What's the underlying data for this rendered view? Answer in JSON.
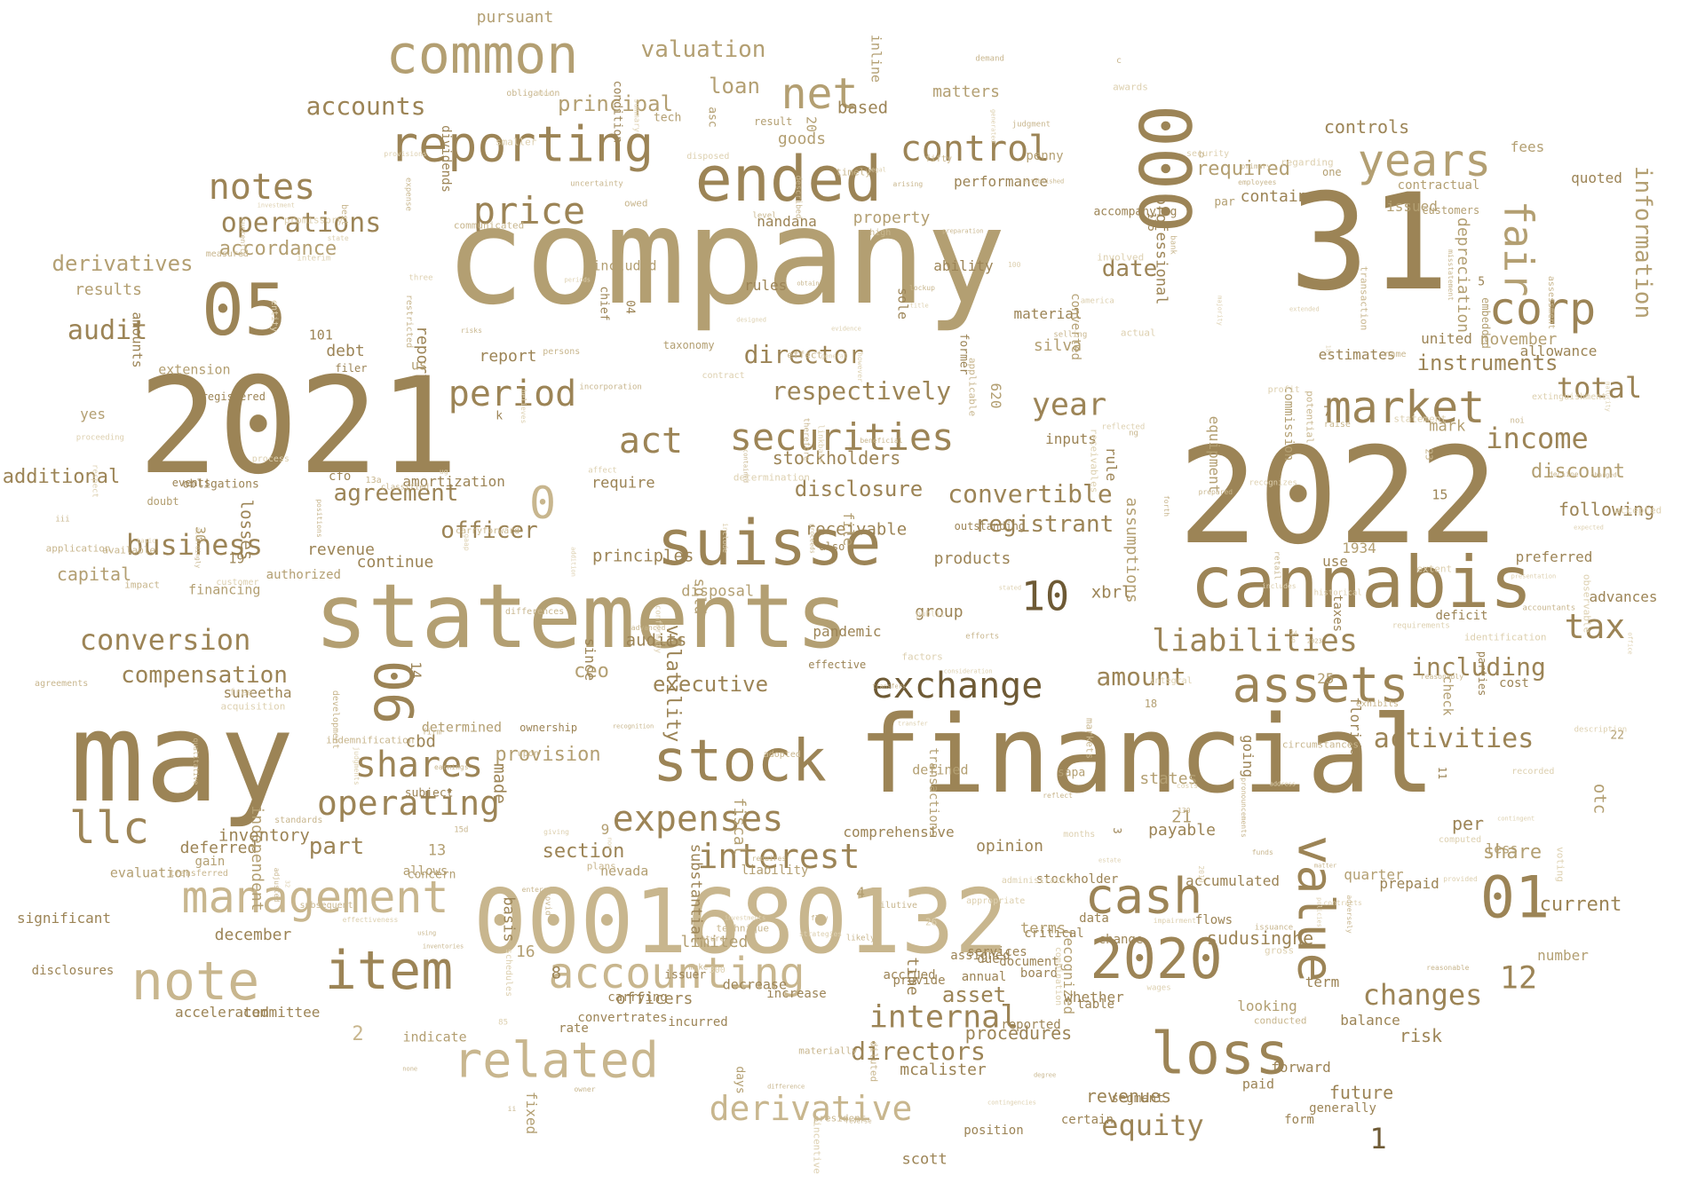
{
  "title": "",
  "palette": {
    "dark": "#6e5a35",
    "mid": "#9c8456",
    "base": "#b39f72",
    "light": "#c8b68e",
    "pale": "#ddd0b0"
  },
  "words": [
    {
      "text": "company"
    },
    {
      "text": "31"
    },
    {
      "text": "2021"
    },
    {
      "text": "2022"
    },
    {
      "text": "may"
    },
    {
      "text": "financial"
    },
    {
      "text": "statements"
    },
    {
      "text": "0001680132"
    },
    {
      "text": "suisse"
    },
    {
      "text": "cannabis"
    },
    {
      "text": "000"
    },
    {
      "text": "ended"
    },
    {
      "text": "common"
    },
    {
      "text": "05"
    },
    {
      "text": "stock"
    },
    {
      "text": "reporting"
    },
    {
      "text": "loss"
    },
    {
      "text": "cash"
    },
    {
      "text": "related"
    },
    {
      "text": "item"
    },
    {
      "text": "note"
    },
    {
      "text": "2020"
    },
    {
      "text": "assets"
    },
    {
      "text": "value"
    },
    {
      "text": "01"
    },
    {
      "text": "management"
    },
    {
      "text": "06"
    },
    {
      "text": "llc"
    },
    {
      "text": "accounting"
    },
    {
      "text": "market"
    },
    {
      "text": "corp"
    },
    {
      "text": "years"
    },
    {
      "text": "fair"
    },
    {
      "text": "net"
    },
    {
      "text": "control"
    },
    {
      "text": "price"
    },
    {
      "text": "notes"
    },
    {
      "text": "period"
    },
    {
      "text": "securities"
    },
    {
      "text": "act"
    },
    {
      "text": "exchange"
    },
    {
      "text": "expenses"
    },
    {
      "text": "interest"
    },
    {
      "text": "shares"
    },
    {
      "text": "operating"
    },
    {
      "text": "derivative"
    },
    {
      "text": "liabilities"
    },
    {
      "text": "tax"
    },
    {
      "text": "income"
    },
    {
      "text": "total"
    },
    {
      "text": "0"
    },
    {
      "text": "10"
    },
    {
      "text": "business"
    },
    {
      "text": "conversion"
    },
    {
      "text": "operations"
    },
    {
      "text": "accounts"
    },
    {
      "text": "audit"
    },
    {
      "text": "respectively"
    },
    {
      "text": "including"
    },
    {
      "text": "year"
    },
    {
      "text": "internal"
    },
    {
      "text": "changes"
    },
    {
      "text": "equity"
    },
    {
      "text": "directors"
    },
    {
      "text": "information"
    },
    {
      "text": "director"
    },
    {
      "text": "compensation"
    },
    {
      "text": "part"
    },
    {
      "text": "date"
    },
    {
      "text": "amount"
    },
    {
      "text": "convertible"
    },
    {
      "text": "registrant"
    },
    {
      "text": "valuation"
    },
    {
      "text": "principal"
    },
    {
      "text": "loan"
    },
    {
      "text": "officer"
    },
    {
      "text": "agreement"
    },
    {
      "text": "derivatives"
    },
    {
      "text": "accordance"
    },
    {
      "text": "executive"
    },
    {
      "text": "section"
    },
    {
      "text": "provision"
    },
    {
      "text": "share"
    },
    {
      "text": "disclosure"
    },
    {
      "text": "required"
    },
    {
      "text": "controls"
    },
    {
      "text": "instruments"
    },
    {
      "text": "activities"
    },
    {
      "text": "12"
    },
    {
      "text": "1"
    },
    {
      "text": "2"
    },
    {
      "text": "procedures"
    },
    {
      "text": "revenues"
    },
    {
      "text": "future"
    },
    {
      "text": "sudusinghe"
    },
    {
      "text": "discount"
    },
    {
      "text": "following"
    },
    {
      "text": "goods"
    },
    {
      "text": "stockholders"
    },
    {
      "text": "matters"
    },
    {
      "text": "pursuant"
    },
    {
      "text": "assumptions"
    },
    {
      "text": "volatility"
    },
    {
      "text": "ceo"
    },
    {
      "text": "asset"
    },
    {
      "text": "risk"
    },
    {
      "text": "current"
    },
    {
      "text": "per"
    },
    {
      "text": "opinion"
    },
    {
      "text": "products"
    },
    {
      "text": "november"
    },
    {
      "text": "depreciation"
    },
    {
      "text": "additional"
    },
    {
      "text": "capital"
    },
    {
      "text": "results"
    },
    {
      "text": "deferred"
    },
    {
      "text": "december"
    },
    {
      "text": "suneetha"
    },
    {
      "text": "significant"
    },
    {
      "text": "disclosures"
    },
    {
      "text": "committee"
    },
    {
      "text": "accelerated"
    },
    {
      "text": "property"
    },
    {
      "text": "contains"
    },
    {
      "text": "nandana"
    },
    {
      "text": "performance"
    },
    {
      "text": "recognized"
    },
    {
      "text": "mcalister"
    },
    {
      "text": "officers"
    },
    {
      "text": "comprehensive"
    },
    {
      "text": "payable"
    },
    {
      "text": "continue"
    },
    {
      "text": "revenue"
    },
    {
      "text": "debt"
    },
    {
      "text": "report"
    },
    {
      "text": "silva"
    },
    {
      "text": "material"
    },
    {
      "text": "inputs"
    },
    {
      "text": "rule"
    },
    {
      "text": "estimates"
    },
    {
      "text": "united"
    },
    {
      "text": "allowance"
    },
    {
      "text": "quoted"
    },
    {
      "text": "fees"
    },
    {
      "text": "contractual"
    },
    {
      "text": "issued"
    },
    {
      "text": "preferred"
    },
    {
      "text": "advances"
    },
    {
      "text": "cost"
    },
    {
      "text": "deficit"
    },
    {
      "text": "taxes"
    },
    {
      "text": "equipment"
    },
    {
      "text": "number"
    },
    {
      "text": "term"
    },
    {
      "text": "forward"
    },
    {
      "text": "balance"
    },
    {
      "text": "looking"
    },
    {
      "text": "generally"
    },
    {
      "text": "form"
    },
    {
      "text": "whether"
    },
    {
      "text": "accumulated"
    },
    {
      "text": "flows"
    },
    {
      "text": "change"
    },
    {
      "text": "data"
    },
    {
      "text": "segment"
    },
    {
      "text": "annual"
    },
    {
      "text": "document"
    },
    {
      "text": "increase"
    },
    {
      "text": "incurred"
    },
    {
      "text": "carrying"
    },
    {
      "text": "convertrates"
    },
    {
      "text": "rate"
    },
    {
      "text": "board"
    },
    {
      "text": "critical"
    },
    {
      "text": "table"
    },
    {
      "text": "stockholder"
    },
    {
      "text": "reported"
    },
    {
      "text": "due"
    },
    {
      "text": "accrued"
    },
    {
      "text": "provide"
    },
    {
      "text": "services"
    },
    {
      "text": "assigned"
    },
    {
      "text": "effective"
    },
    {
      "text": "based"
    },
    {
      "text": "basis"
    },
    {
      "text": "subject"
    },
    {
      "text": "losses"
    },
    {
      "text": "transactions"
    },
    {
      "text": "rules"
    },
    {
      "text": "commission"
    },
    {
      "text": "indicate"
    },
    {
      "text": "substantial"
    },
    {
      "text": "result"
    },
    {
      "text": "certain"
    },
    {
      "text": "decrease"
    },
    {
      "text": "concern"
    },
    {
      "text": "going"
    },
    {
      "text": "included"
    },
    {
      "text": "outstanding"
    },
    {
      "text": "check"
    },
    {
      "text": "embedded"
    },
    {
      "text": "states"
    },
    {
      "text": "time"
    },
    {
      "text": "amounts"
    },
    {
      "text": "reports"
    },
    {
      "text": "events"
    },
    {
      "text": "liability"
    },
    {
      "text": "converted"
    },
    {
      "text": "filer"
    },
    {
      "text": "audits"
    },
    {
      "text": "xbrl"
    },
    {
      "text": "disposal"
    },
    {
      "text": "scott"
    },
    {
      "text": "defined"
    },
    {
      "text": "receivable"
    },
    {
      "text": "principles"
    },
    {
      "text": "accompanying"
    },
    {
      "text": "inline"
    },
    {
      "text": "allows"
    },
    {
      "text": "issuer"
    },
    {
      "text": "parties"
    },
    {
      "text": "amortization"
    },
    {
      "text": "evaluation"
    },
    {
      "text": "obligations"
    },
    {
      "text": "independent"
    },
    {
      "text": "k"
    },
    {
      "text": "cbd"
    },
    {
      "text": "asc"
    },
    {
      "text": "position"
    },
    {
      "text": "terms"
    },
    {
      "text": "inventory"
    },
    {
      "text": "since"
    },
    {
      "text": "quarter"
    },
    {
      "text": "tech"
    },
    {
      "text": "paid"
    },
    {
      "text": "chief"
    },
    {
      "text": "florida"
    },
    {
      "text": "authorized"
    },
    {
      "text": "ability"
    },
    {
      "text": "also"
    },
    {
      "text": "extension"
    },
    {
      "text": "customers"
    },
    {
      "text": "prepaid"
    },
    {
      "text": "ownership"
    },
    {
      "text": "fixed"
    },
    {
      "text": "dividends"
    },
    {
      "text": "pandemic"
    },
    {
      "text": "condition"
    },
    {
      "text": "registered"
    },
    {
      "text": "1934"
    },
    {
      "text": "nevada"
    },
    {
      "text": "determined"
    },
    {
      "text": "financing"
    },
    {
      "text": "professional"
    },
    {
      "text": "taxonomy"
    },
    {
      "text": "file"
    },
    {
      "text": "fiscal"
    },
    {
      "text": "us"
    },
    {
      "text": "15"
    },
    {
      "text": "25"
    },
    {
      "text": "30"
    },
    {
      "text": "22"
    },
    {
      "text": "13"
    },
    {
      "text": "11"
    },
    {
      "text": "14"
    },
    {
      "text": "20"
    },
    {
      "text": "21"
    },
    {
      "text": "3"
    },
    {
      "text": "4"
    },
    {
      "text": "5"
    },
    {
      "text": "7"
    },
    {
      "text": "8"
    },
    {
      "text": "9"
    },
    {
      "text": "16"
    },
    {
      "text": "18"
    },
    {
      "text": "19"
    },
    {
      "text": "04"
    },
    {
      "text": "101"
    },
    {
      "text": "135"
    },
    {
      "text": "620"
    },
    {
      "text": "sold"
    },
    {
      "text": "sole"
    },
    {
      "text": "sapa"
    },
    {
      "text": "mark"
    },
    {
      "text": "less"
    },
    {
      "text": "made"
    },
    {
      "text": "one"
    },
    {
      "text": "use"
    },
    {
      "text": "par"
    },
    {
      "text": "penny"
    },
    {
      "text": "group"
    },
    {
      "text": "cfo"
    },
    {
      "text": "require"
    },
    {
      "text": "doubt"
    },
    {
      "text": "days"
    },
    {
      "text": "limited"
    },
    {
      "text": "gain"
    },
    {
      "text": "otc"
    },
    {
      "text": "yes"
    },
    {
      "text": "former"
    },
    {
      "text": "months"
    },
    {
      "text": "likely"
    },
    {
      "text": "name"
    },
    {
      "text": "make"
    },
    {
      "text": "level"
    },
    {
      "text": "voting"
    },
    {
      "text": "effect"
    },
    {
      "text": "persons"
    },
    {
      "text": "includes"
    },
    {
      "text": "lockup"
    },
    {
      "text": "established"
    },
    {
      "text": "expected"
    },
    {
      "text": "incentive"
    },
    {
      "text": "awards"
    },
    {
      "text": "noi"
    },
    {
      "text": "misstatement"
    },
    {
      "text": "diluted"
    },
    {
      "text": "title"
    },
    {
      "text": "high"
    },
    {
      "text": "combination"
    },
    {
      "text": "entity"
    },
    {
      "text": "president"
    },
    {
      "text": "reasonable"
    },
    {
      "text": "three"
    },
    {
      "text": "adjusted"
    },
    {
      "text": "extent"
    },
    {
      "text": "contracts"
    },
    {
      "text": "application"
    },
    {
      "text": "agreements"
    },
    {
      "text": "expense"
    },
    {
      "text": "involved"
    },
    {
      "text": "identification"
    },
    {
      "text": "accepted"
    },
    {
      "text": "assessment"
    },
    {
      "text": "subsequent"
    },
    {
      "text": "provided"
    },
    {
      "text": "transferred"
    },
    {
      "text": "efforts"
    },
    {
      "text": "summary"
    },
    {
      "text": "described"
    },
    {
      "text": "transaction"
    },
    {
      "text": "actual"
    },
    {
      "text": "materially"
    },
    {
      "text": "employees"
    },
    {
      "text": "computed"
    },
    {
      "text": "estate"
    },
    {
      "text": "process"
    },
    {
      "text": "recognizes"
    },
    {
      "text": "timely"
    },
    {
      "text": "exhibits"
    },
    {
      "text": "communicated"
    },
    {
      "text": "uncertainty"
    },
    {
      "text": "currently"
    },
    {
      "text": "requirements"
    },
    {
      "text": "appropriate"
    },
    {
      "text": "earnings"
    },
    {
      "text": "extinguishment"
    },
    {
      "text": "retail"
    },
    {
      "text": "measured"
    },
    {
      "text": "legal"
    },
    {
      "text": "linkbase"
    },
    {
      "text": "presentation"
    },
    {
      "text": "description"
    },
    {
      "text": "nature"
    },
    {
      "text": "adopted"
    },
    {
      "text": "raise"
    },
    {
      "text": "matter"
    },
    {
      "text": "provisions"
    },
    {
      "text": "administrative"
    },
    {
      "text": "factors"
    },
    {
      "text": "judgments"
    },
    {
      "text": "obligation"
    },
    {
      "text": "covid"
    },
    {
      "text": "applicable"
    },
    {
      "text": "contained"
    },
    {
      "text": "beneficial"
    },
    {
      "text": "upon"
    },
    {
      "text": "non"
    },
    {
      "text": "preparation"
    },
    {
      "text": "state"
    },
    {
      "text": "contingent"
    },
    {
      "text": "address"
    },
    {
      "text": "best"
    },
    {
      "text": "none"
    },
    {
      "text": "evidence"
    },
    {
      "text": "requires"
    },
    {
      "text": "general"
    },
    {
      "text": "designed"
    },
    {
      "text": "reflect"
    },
    {
      "text": "forth"
    },
    {
      "text": "technique"
    },
    {
      "text": "owner"
    },
    {
      "text": "contract"
    },
    {
      "text": "model"
    },
    {
      "text": "risks"
    },
    {
      "text": "prepared"
    },
    {
      "text": "customer"
    },
    {
      "text": "inventories"
    },
    {
      "text": "determination"
    },
    {
      "text": "owed"
    },
    {
      "text": "recognition"
    },
    {
      "text": "reflected"
    },
    {
      "text": "investment"
    },
    {
      "text": "impairment"
    },
    {
      "text": "therefore"
    },
    {
      "text": "transfers"
    },
    {
      "text": "affect"
    },
    {
      "text": "accountants"
    },
    {
      "text": "stated"
    },
    {
      "text": "advanced"
    },
    {
      "text": "free"
    },
    {
      "text": "standards"
    },
    {
      "text": "conformity"
    },
    {
      "text": "qualitative"
    },
    {
      "text": "periods"
    },
    {
      "text": "office"
    },
    {
      "text": "demand"
    },
    {
      "text": "security"
    },
    {
      "text": "development"
    },
    {
      "text": "wages"
    },
    {
      "text": "include"
    },
    {
      "text": "arising"
    },
    {
      "text": "selling"
    },
    {
      "text": "obtain"
    },
    {
      "text": "potential"
    },
    {
      "text": "majority"
    },
    {
      "text": "maturity"
    },
    {
      "text": "strategies"
    },
    {
      "text": "observable"
    },
    {
      "text": "charged"
    },
    {
      "text": "integral"
    },
    {
      "text": "disposed"
    },
    {
      "text": "public"
    },
    {
      "text": "dilutive"
    },
    {
      "text": "promissory"
    },
    {
      "text": "policies"
    },
    {
      "text": "available"
    },
    {
      "text": "entered"
    },
    {
      "text": "extended"
    },
    {
      "text": "plans"
    },
    {
      "text": "using"
    },
    {
      "text": "transfer"
    },
    {
      "text": "gaap"
    },
    {
      "text": "degree"
    },
    {
      "text": "flow"
    },
    {
      "text": "issuance"
    },
    {
      "text": "generated"
    },
    {
      "text": "proceeding"
    },
    {
      "text": "consideration"
    },
    {
      "text": "classified"
    },
    {
      "text": "carryforward"
    },
    {
      "text": "conducted"
    },
    {
      "text": "contingencies"
    },
    {
      "text": "smaller"
    },
    {
      "text": "investments"
    },
    {
      "text": "adversely"
    },
    {
      "text": "positions"
    },
    {
      "text": "receivables"
    },
    {
      "text": "recorded"
    },
    {
      "text": "regarding"
    },
    {
      "text": "believes"
    },
    {
      "text": "indemnification"
    },
    {
      "text": "markets"
    },
    {
      "text": "giving"
    },
    {
      "text": "effectiveness"
    },
    {
      "text": "accordingly"
    },
    {
      "text": "circumstances"
    },
    {
      "text": "difference"
    },
    {
      "text": "funds"
    },
    {
      "text": "america"
    },
    {
      "text": "statement"
    },
    {
      "text": "bank"
    },
    {
      "text": "addition"
    },
    {
      "text": "costs"
    },
    {
      "text": "fifty"
    },
    {
      "text": "incorporation"
    },
    {
      "text": "differences"
    },
    {
      "text": "schedules"
    },
    {
      "text": "reasonably"
    },
    {
      "text": "basic"
    },
    {
      "text": "proceeds"
    },
    {
      "text": "restricted"
    },
    {
      "text": "reverse"
    },
    {
      "text": "historical"
    },
    {
      "text": "acquisition"
    },
    {
      "text": "gross"
    },
    {
      "text": "profit"
    },
    {
      "text": "respect"
    },
    {
      "text": "impact"
    },
    {
      "text": "however"
    },
    {
      "text": "decline"
    },
    {
      "text": "interim"
    },
    {
      "text": "primary"
    },
    {
      "text": "ii"
    },
    {
      "text": "iii"
    },
    {
      "text": "b"
    },
    {
      "text": "c"
    },
    {
      "text": "13a"
    },
    {
      "text": "15d"
    },
    {
      "text": "187"
    },
    {
      "text": "100"
    },
    {
      "text": "130"
    },
    {
      "text": "2019"
    },
    {
      "text": "2023"
    },
    {
      "text": "300"
    },
    {
      "text": "32"
    },
    {
      "text": "85"
    },
    {
      "text": "23"
    },
    {
      "text": "24"
    },
    {
      "text": "26"
    },
    {
      "text": "6"
    },
    {
      "text": "firm"
    },
    {
      "text": "ng"
    },
    {
      "text": "ug"
    },
    {
      "text": "judgment"
    },
    {
      "text": "pronouncements"
    }
  ]
}
